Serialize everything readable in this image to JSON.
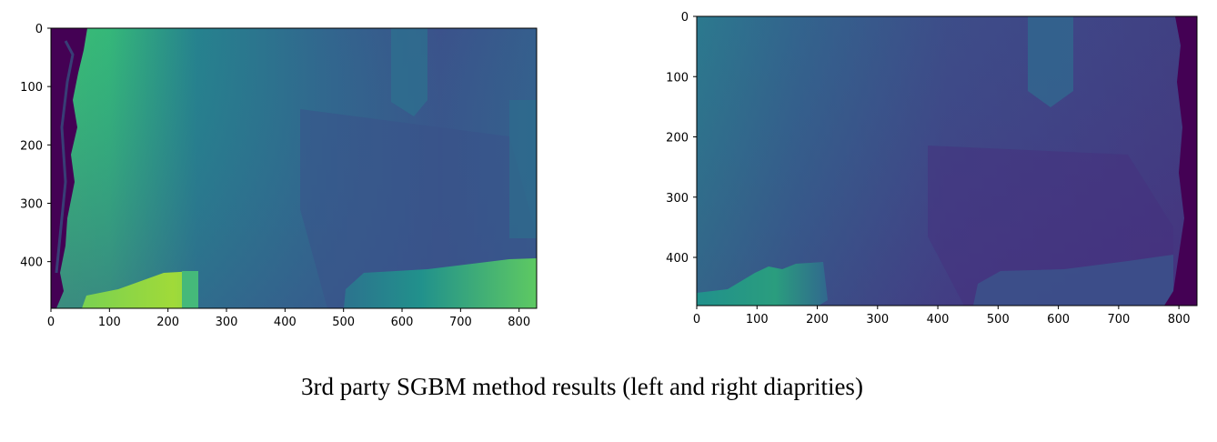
{
  "caption": "3rd party SGBM method results (left and right diaprities)",
  "colormap": "viridis",
  "chart_data": [
    {
      "type": "heatmap",
      "panel": "left",
      "xlim": [
        0,
        830
      ],
      "ylim": [
        480,
        0
      ],
      "xticks": [
        0,
        100,
        200,
        300,
        400,
        500,
        600,
        700,
        800
      ],
      "yticks": [
        0,
        100,
        200,
        300,
        400
      ],
      "xtick_labels": [
        "0",
        "100",
        "200",
        "300",
        "400",
        "500",
        "600",
        "700",
        "800"
      ],
      "ytick_labels": [
        "0",
        "100",
        "200",
        "300",
        "400"
      ],
      "colors": {
        "bright_yellow_green": "#8fd744",
        "light_green": "#3aba76",
        "teal_green": "#2a9d7e",
        "teal": "#27808e",
        "blue_teal": "#2e6e8e",
        "blue": "#38598c",
        "indigo": "#3f4a8a",
        "dark_purple": "#440154"
      }
    },
    {
      "type": "heatmap",
      "panel": "right",
      "xlim": [
        0,
        830
      ],
      "ylim": [
        480,
        0
      ],
      "xticks": [
        0,
        100,
        200,
        300,
        400,
        500,
        600,
        700,
        800
      ],
      "yticks": [
        0,
        100,
        200,
        300,
        400
      ],
      "xtick_labels": [
        "0",
        "100",
        "200",
        "300",
        "400",
        "500",
        "600",
        "700",
        "800"
      ],
      "ytick_labels": [
        "0",
        "100",
        "200",
        "300",
        "400"
      ],
      "colors": {
        "teal_green": "#2a9d7e",
        "teal": "#2a7f8e",
        "blue_teal": "#2f6a8d",
        "blue": "#39568c",
        "indigo": "#433e85",
        "deep_indigo": "#46307e",
        "dark_purple": "#440154"
      }
    }
  ]
}
